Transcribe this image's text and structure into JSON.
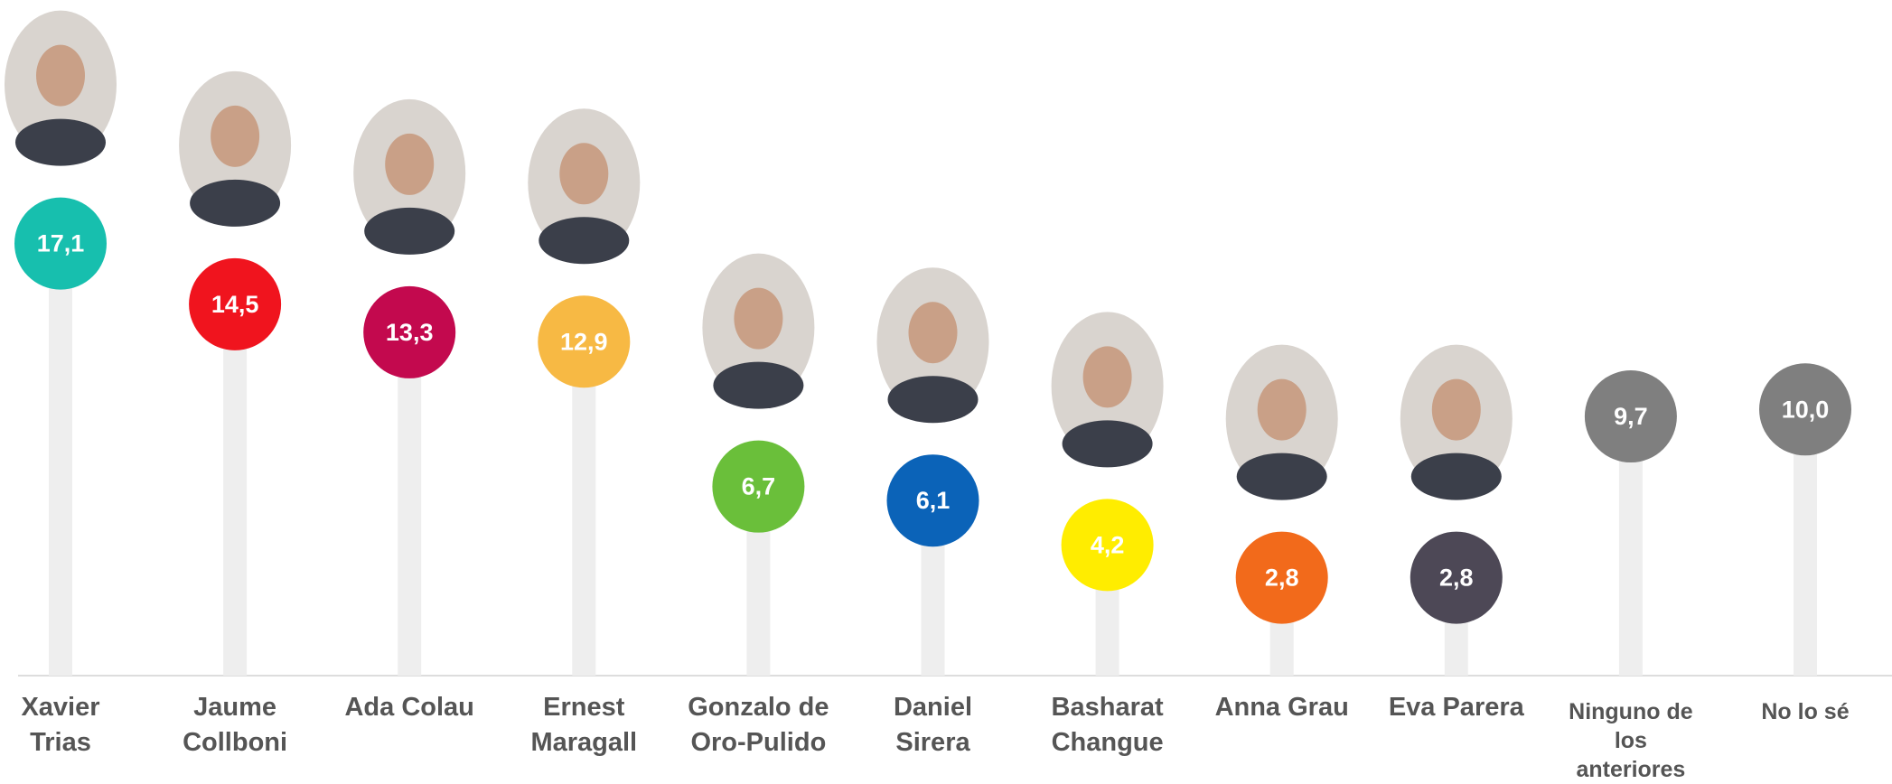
{
  "chart_data": {
    "type": "lollipop",
    "categories": [
      "Xavier Trias",
      "Jaume Collboni",
      "Ada Colau",
      "Ernest Maragall",
      "Gonzalo de Oro-Pulido",
      "Daniel Sirera",
      "Basharat Changue",
      "Anna Grau",
      "Eva Parera",
      "Ninguno de los anteriores",
      "No lo sé"
    ],
    "values": [
      17.1,
      14.5,
      13.3,
      12.9,
      6.7,
      6.1,
      4.2,
      2.8,
      2.8,
      9.7,
      10.0
    ],
    "value_labels": [
      "17,1",
      "14,5",
      "13,3",
      "12,9",
      "6,7",
      "6,1",
      "4,2",
      "2,8",
      "2,8",
      "9,7",
      "10,0"
    ],
    "colors": [
      "#17bfae",
      "#f0141e",
      "#c3094e",
      "#f7b944",
      "#6abf3a",
      "#0b63b8",
      "#ffed00",
      "#f26a1b",
      "#4d4856",
      "#7f7f7f",
      "#7f7f7f"
    ]
  }
}
